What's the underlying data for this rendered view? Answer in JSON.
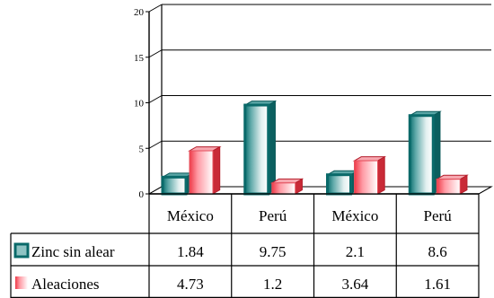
{
  "chart_data": {
    "type": "bar",
    "categories": [
      "México",
      "Perú",
      "México",
      "Perú"
    ],
    "series": [
      {
        "name": "Zinc sin alear",
        "values": [
          1.84,
          9.75,
          2.1,
          8.6
        ],
        "color": "#0f7e7e"
      },
      {
        "name": "Aleaciones",
        "values": [
          4.73,
          1.2,
          3.64,
          1.61
        ],
        "color": "#f23c4b"
      }
    ],
    "value_labels": [
      [
        "1.84",
        "9.75",
        "2.1",
        "8.6"
      ],
      [
        "4.73",
        "1.2",
        "3.64",
        "1.61"
      ]
    ],
    "ylim": [
      0,
      20
    ],
    "yticks": [
      "0",
      "5",
      "10",
      "15",
      "20"
    ],
    "grid": true,
    "data_table": true,
    "style": "3d-bars"
  }
}
